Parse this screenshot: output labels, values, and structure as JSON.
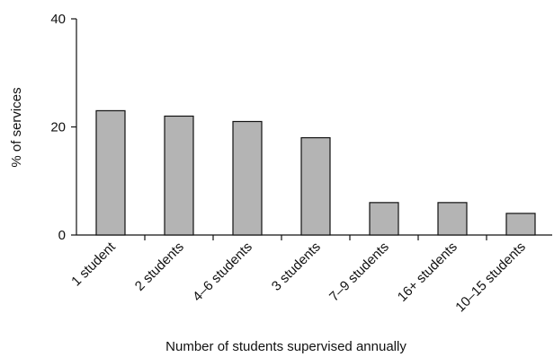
{
  "chart_data": {
    "type": "bar",
    "title": "",
    "xlabel": "Number of students supervised annually",
    "ylabel": "% of services",
    "categories": [
      "1 student",
      "2 students",
      "4–6 students",
      "3 students",
      "7–9 students",
      "16+ students",
      "10–15 students"
    ],
    "values": [
      23,
      22,
      21,
      18,
      6,
      6,
      4
    ],
    "ylim": [
      0,
      40
    ],
    "yticks": [
      0,
      20,
      40
    ],
    "grid": false,
    "legend": "none",
    "bar_color": "#b4b4b4",
    "bar_edge_color": "#111111"
  }
}
